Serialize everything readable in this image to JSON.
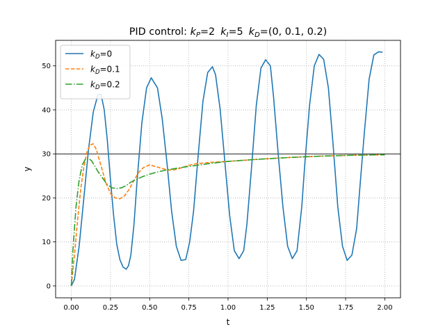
{
  "chart_data": {
    "type": "line",
    "title": {
      "prefix": "PID control: ",
      "kp_sym": "k",
      "kp_sub": "P",
      "kp_val": "=2",
      "ki_sym": "k",
      "ki_sub": "I",
      "ki_val": "=5",
      "kd_sym": "k",
      "kd_sub": "D",
      "kd_val": "=(0, 0.1, 0.2)"
    },
    "xlabel": "t",
    "ylabel": "y",
    "xlim": [
      -0.1,
      2.1
    ],
    "ylim": [
      -2.7,
      55.8
    ],
    "xticks": [
      0.0,
      0.25,
      0.5,
      0.75,
      1.0,
      1.25,
      1.5,
      1.75,
      2.0
    ],
    "xtick_labels": [
      "0.00",
      "0.25",
      "0.50",
      "0.75",
      "1.00",
      "1.25",
      "1.50",
      "1.75",
      "2.00"
    ],
    "yticks": [
      0,
      10,
      20,
      30,
      40,
      50
    ],
    "ytick_labels": [
      "0",
      "10",
      "20",
      "30",
      "40",
      "50"
    ],
    "grid": true,
    "grid_style": "dotted",
    "reference_line": {
      "y": 30,
      "color": "#000000"
    },
    "legend_position": "top-left",
    "series": [
      {
        "legend_sym": "k",
        "legend_sub": "D",
        "legend_val": "=0",
        "color": "#1f77b4",
        "dash": "solid",
        "x": [
          0.0,
          0.02,
          0.05,
          0.08,
          0.11,
          0.14,
          0.17,
          0.19,
          0.21,
          0.23,
          0.25,
          0.27,
          0.29,
          0.31,
          0.33,
          0.35,
          0.365,
          0.38,
          0.4,
          0.42,
          0.45,
          0.48,
          0.51,
          0.55,
          0.58,
          0.61,
          0.64,
          0.67,
          0.7,
          0.73,
          0.755,
          0.78,
          0.81,
          0.84,
          0.87,
          0.9,
          0.92,
          0.95,
          0.98,
          1.01,
          1.04,
          1.07,
          1.1,
          1.12,
          1.15,
          1.18,
          1.21,
          1.24,
          1.27,
          1.29,
          1.32,
          1.35,
          1.38,
          1.41,
          1.44,
          1.47,
          1.49,
          1.52,
          1.55,
          1.58,
          1.61,
          1.64,
          1.67,
          1.7,
          1.73,
          1.76,
          1.79,
          1.82,
          1.84,
          1.87,
          1.9,
          1.93,
          1.96,
          1.985
        ],
        "values": [
          0,
          1.5,
          9,
          20,
          31,
          39.5,
          43.5,
          43.5,
          40,
          33,
          24,
          16,
          9.5,
          6,
          4.3,
          3.8,
          4.6,
          7,
          14,
          24,
          37,
          45,
          47.3,
          45,
          38,
          28,
          17,
          9,
          5.8,
          6,
          10,
          17,
          30,
          42,
          48.5,
          49.8,
          48,
          40,
          28,
          16,
          8,
          6.2,
          8,
          14,
          27,
          41,
          49.5,
          51.4,
          50,
          43,
          30,
          18,
          9,
          6.2,
          8,
          18,
          28,
          41,
          50,
          52.6,
          51.5,
          45,
          32,
          18,
          9,
          5.8,
          7,
          13,
          22,
          35,
          47,
          52.5,
          53.2,
          53.1
        ]
      },
      {
        "legend_sym": "k",
        "legend_sub": "D",
        "legend_val": "=0.1",
        "color": "#ff7f0e",
        "dash": "dashed",
        "x": [
          0.0,
          0.02,
          0.04,
          0.06,
          0.08,
          0.1,
          0.12,
          0.14,
          0.16,
          0.18,
          0.2,
          0.22,
          0.25,
          0.28,
          0.31,
          0.34,
          0.37,
          0.4,
          0.43,
          0.46,
          0.5,
          0.54,
          0.58,
          0.62,
          0.66,
          0.7,
          0.75,
          0.8,
          0.9,
          1.0,
          1.2,
          1.4,
          1.6,
          1.8,
          2.0
        ],
        "values": [
          0,
          7,
          15,
          22,
          27,
          30.5,
          32,
          32.3,
          31,
          28.5,
          26,
          23.5,
          21,
          20,
          19.8,
          20.5,
          22,
          24,
          25.8,
          26.9,
          27.5,
          27.1,
          26.7,
          26.3,
          26.4,
          26.8,
          27.4,
          27.8,
          28.1,
          28.3,
          28.8,
          29.2,
          29.5,
          29.7,
          29.8
        ]
      },
      {
        "legend_sym": "k",
        "legend_sub": "D",
        "legend_val": "=0.2",
        "color": "#2ca02c",
        "dash": "dashdot",
        "x": [
          0.0,
          0.01,
          0.03,
          0.05,
          0.07,
          0.09,
          0.11,
          0.13,
          0.15,
          0.17,
          0.2,
          0.23,
          0.26,
          0.29,
          0.32,
          0.35,
          0.38,
          0.42,
          0.46,
          0.5,
          0.55,
          0.6,
          0.65,
          0.7,
          0.8,
          0.9,
          1.0,
          1.2,
          1.4,
          1.6,
          1.8,
          2.0
        ],
        "values": [
          0,
          8,
          18,
          24,
          27.5,
          28.8,
          29,
          28.4,
          27.2,
          26,
          24.5,
          23,
          22.3,
          22.1,
          22.3,
          22.8,
          23.6,
          24.3,
          24.9,
          25.4,
          25.9,
          26.3,
          26.6,
          26.9,
          27.4,
          27.9,
          28.3,
          28.8,
          29.2,
          29.5,
          29.7,
          29.8
        ]
      }
    ]
  }
}
